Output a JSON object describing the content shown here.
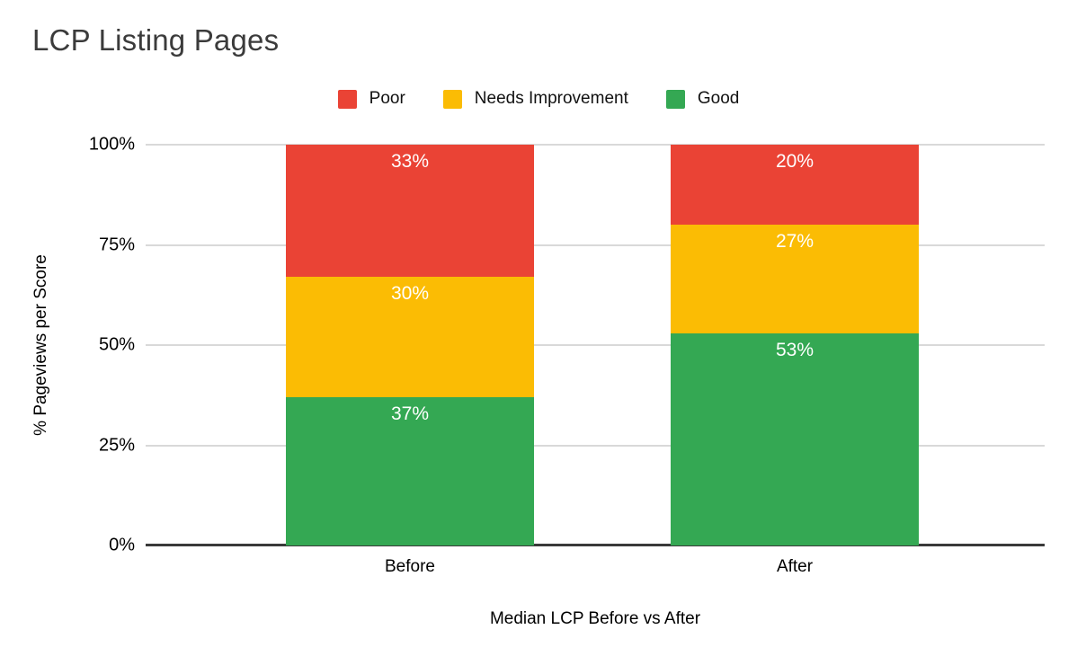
{
  "chart_data": {
    "type": "bar",
    "stacked": true,
    "title": "LCP Listing Pages",
    "xlabel": "Median LCP Before vs After",
    "ylabel": "% Pageviews per Score",
    "categories": [
      "Before",
      "After"
    ],
    "series": [
      {
        "name": "Poor",
        "color": "#ea4335",
        "values": [
          33,
          20
        ]
      },
      {
        "name": "Needs Improvement",
        "color": "#fbbc04",
        "values": [
          30,
          27
        ]
      },
      {
        "name": "Good",
        "color": "#34a853",
        "values": [
          37,
          53
        ]
      }
    ],
    "value_suffix": "%",
    "ylim": [
      0,
      100
    ],
    "yticks": [
      0,
      25,
      50,
      75,
      100
    ],
    "ytick_labels": [
      "0%",
      "25%",
      "50%",
      "75%",
      "100%"
    ],
    "legend_position": "top",
    "grid": true,
    "colors": {
      "title_text": "#3b3b3b",
      "axis_text": "#000000",
      "gridline": "#d9d9d9",
      "axis_line": "#3a3a3a",
      "segment_label_text": "#ffffff",
      "background": "#ffffff"
    }
  }
}
